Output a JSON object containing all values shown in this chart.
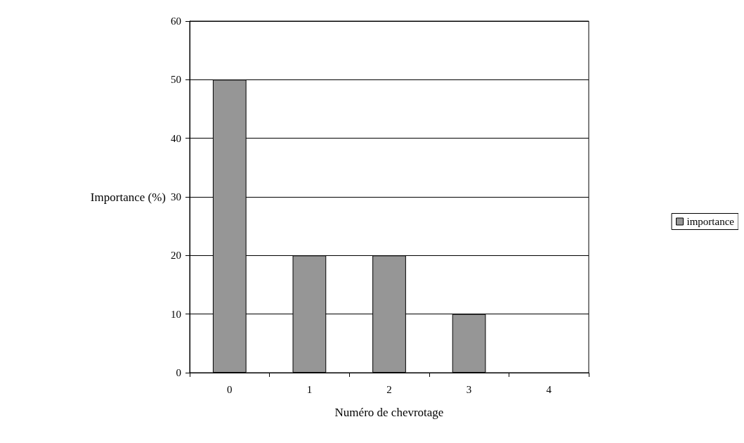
{
  "chart_data": {
    "type": "bar",
    "xlabel": "Numéro de chevrotage",
    "ylabel": "Importance (%)",
    "categories": [
      "0",
      "1",
      "2",
      "3",
      "4"
    ],
    "series": [
      {
        "name": "importance",
        "color": "#969696",
        "values": [
          50,
          20,
          20,
          10,
          0
        ]
      }
    ],
    "ylim": [
      0,
      60
    ],
    "yticks": [
      0,
      10,
      20,
      30,
      40,
      50,
      60
    ],
    "grid": "y",
    "legend": "right"
  }
}
